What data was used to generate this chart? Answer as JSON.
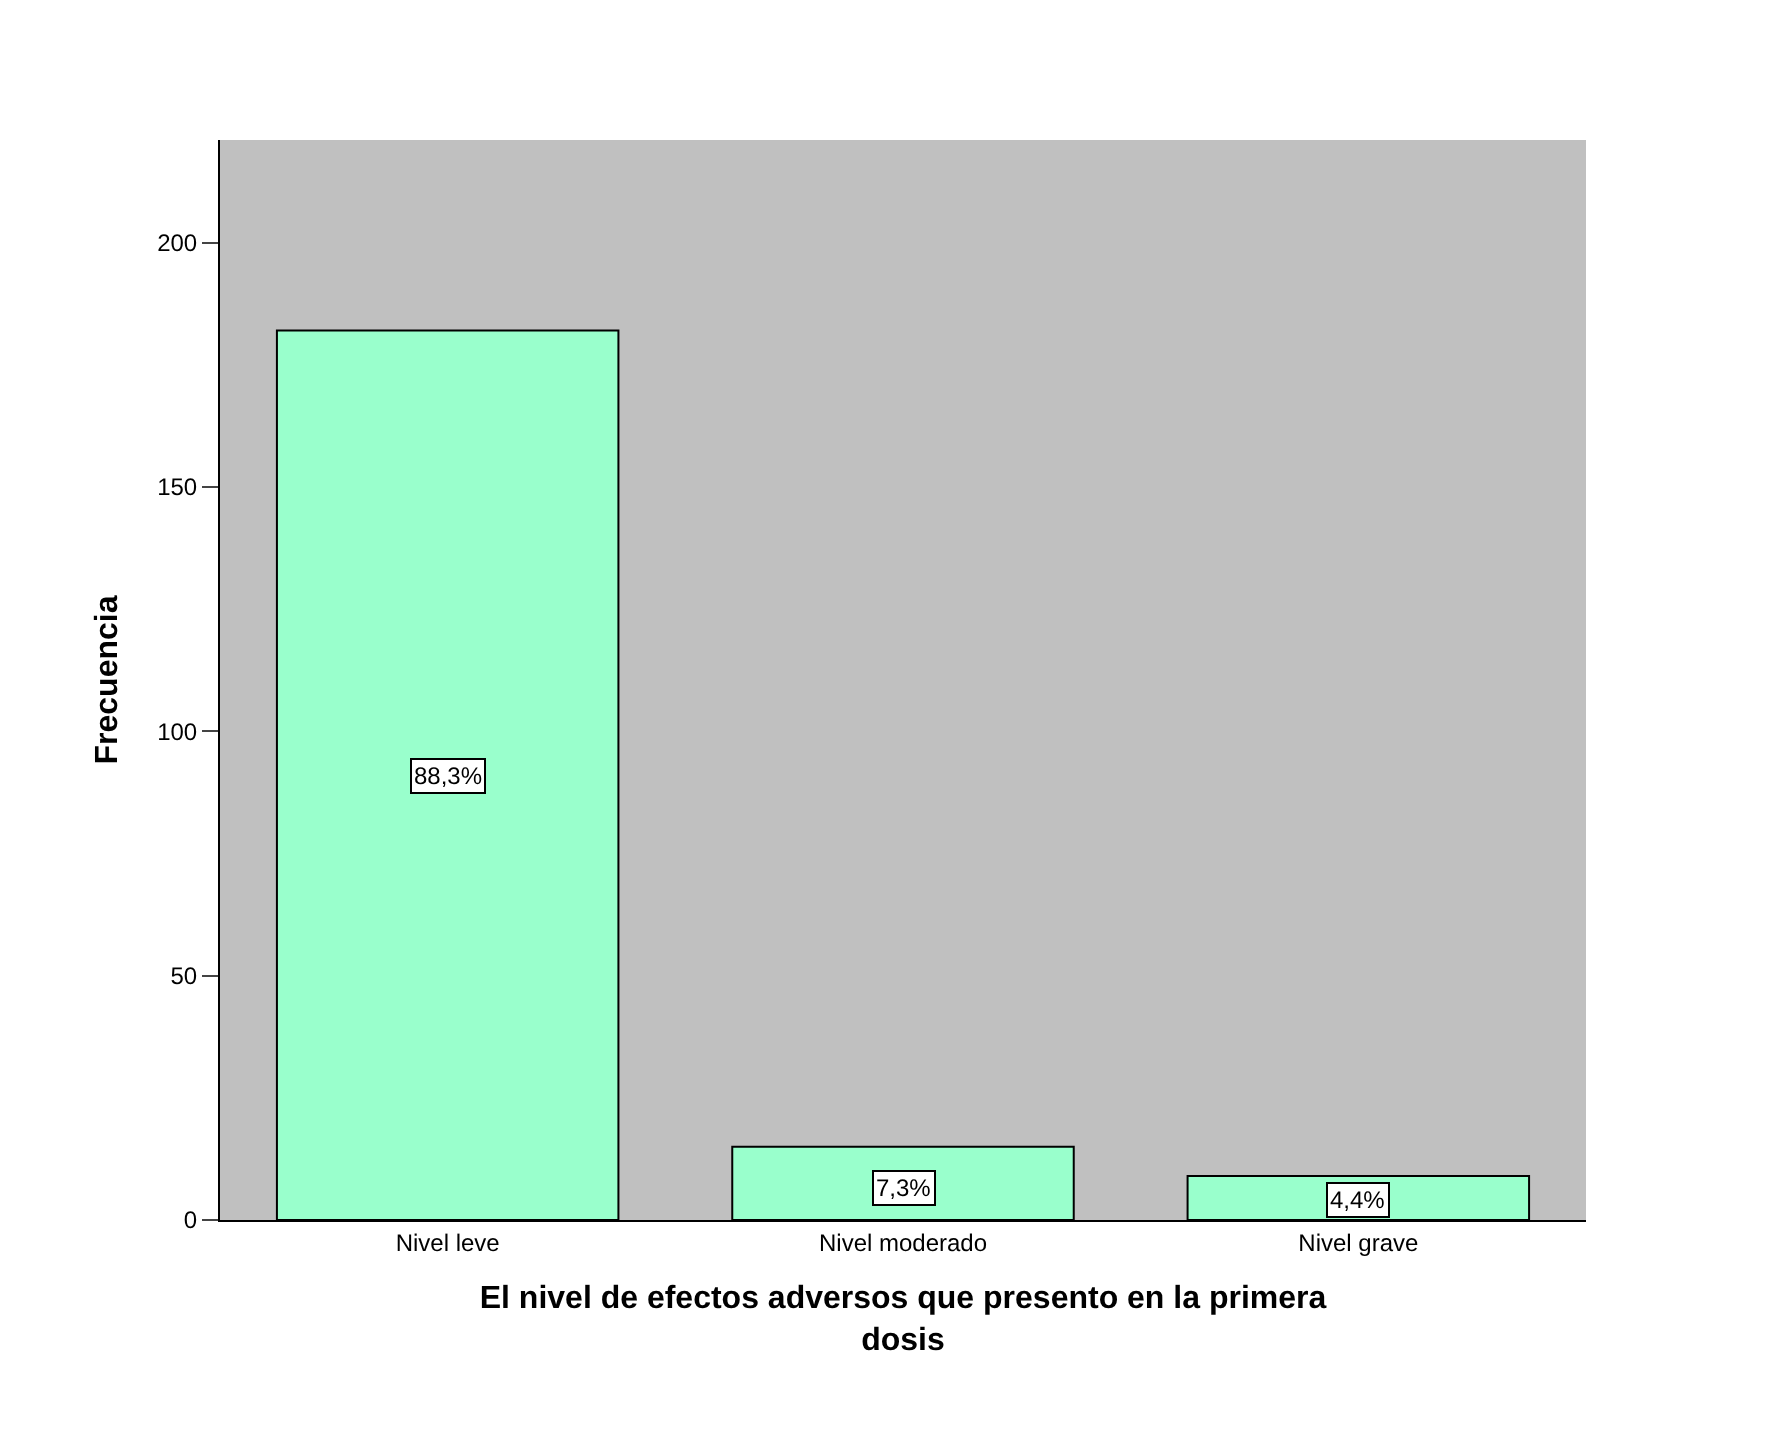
{
  "chart_data": {
    "type": "bar",
    "xlabel": "El nivel de efectos adversos que presento en la primera dosis",
    "ylabel": "Frecuencia",
    "categories": [
      "Nivel leve",
      "Nivel moderado",
      "Nivel grave"
    ],
    "values": [
      182,
      15,
      9
    ],
    "color": "#99ffcc",
    "annotations": [
      "88,3%",
      "7,3%",
      "4,4%"
    ],
    "ylim": [
      0,
      221
    ],
    "yticks": [
      0,
      50,
      100,
      150,
      200
    ],
    "grid": false
  }
}
